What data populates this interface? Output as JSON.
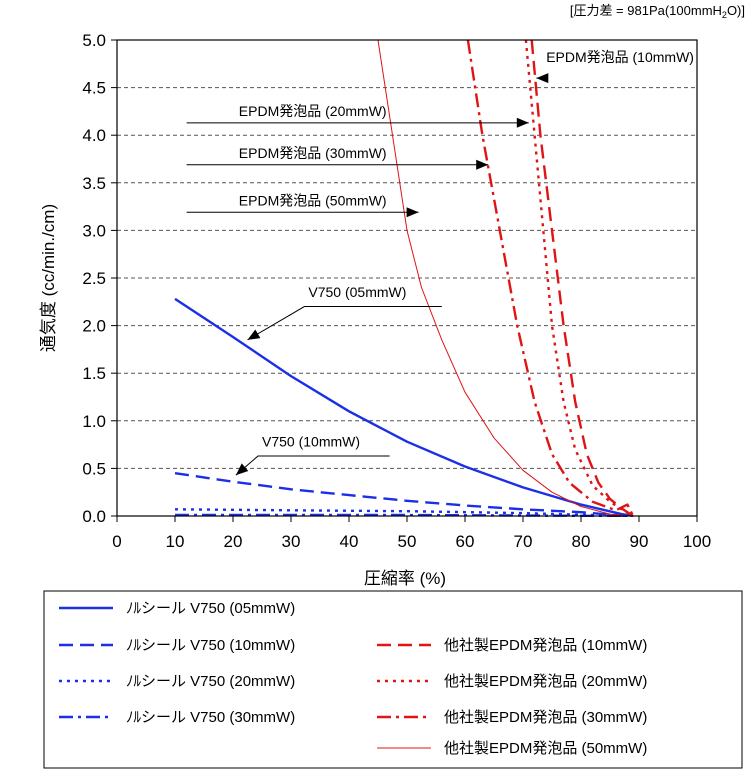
{
  "chart_data": {
    "type": "line",
    "note_prefix": "[圧力差 = 981Pa(100mmH",
    "note_sub": "2",
    "note_suffix": "O)]",
    "xlabel": "圧縮率 (%)",
    "ylabel": "通気度 (cc/min./cm)",
    "xlim": [
      0,
      100
    ],
    "ylim": [
      0,
      5
    ],
    "x_ticks": [
      "0",
      "10",
      "20",
      "30",
      "40",
      "50",
      "60",
      "70",
      "80",
      "90",
      "100"
    ],
    "y_ticks": [
      "0.0",
      "0.5",
      "1.0",
      "1.5",
      "2.0",
      "2.5",
      "3.0",
      "3.5",
      "4.0",
      "4.5",
      "5.0"
    ],
    "grid": "horizontal dashed",
    "legend_position": "bottom",
    "series": [
      {
        "name": "ﾉﾙシール V750 (05mmW)",
        "color": "#1a2fe6",
        "style": "solid",
        "width": 2.4,
        "points": [
          [
            10,
            2.28
          ],
          [
            20,
            1.88
          ],
          [
            30,
            1.47
          ],
          [
            40,
            1.1
          ],
          [
            50,
            0.78
          ],
          [
            60,
            0.52
          ],
          [
            70,
            0.3
          ],
          [
            80,
            0.12
          ],
          [
            87,
            0.02
          ],
          [
            89,
            0.0
          ]
        ]
      },
      {
        "name": "ﾉﾙシール V750 (10mmW)",
        "color": "#1a2fe6",
        "style": "dash",
        "width": 2.4,
        "points": [
          [
            10,
            0.45
          ],
          [
            20,
            0.36
          ],
          [
            30,
            0.28
          ],
          [
            40,
            0.22
          ],
          [
            50,
            0.16
          ],
          [
            60,
            0.11
          ],
          [
            70,
            0.07
          ],
          [
            80,
            0.04
          ],
          [
            88,
            0.0
          ]
        ]
      },
      {
        "name": "ﾉﾙシール V750 (20mmW)",
        "color": "#1a2fe6",
        "style": "dot",
        "width": 2.4,
        "points": [
          [
            10,
            0.07
          ],
          [
            30,
            0.06
          ],
          [
            50,
            0.05
          ],
          [
            70,
            0.03
          ],
          [
            88,
            0.0
          ]
        ]
      },
      {
        "name": "ﾉﾙシール V750 (30mmW)",
        "color": "#1a2fe6",
        "style": "dashdot",
        "width": 2.4,
        "points": [
          [
            10,
            0.01
          ],
          [
            50,
            0.01
          ],
          [
            88,
            0.0
          ]
        ]
      },
      {
        "name": "他社製EPDM発泡品 (10mmW)",
        "color": "#e01414",
        "style": "dash",
        "width": 2.4,
        "points": [
          [
            71.5,
            5.0
          ],
          [
            73,
            4.0
          ],
          [
            75,
            3.0
          ],
          [
            77,
            2.0
          ],
          [
            79,
            1.2
          ],
          [
            81,
            0.65
          ],
          [
            83,
            0.35
          ],
          [
            85,
            0.18
          ],
          [
            87,
            0.08
          ],
          [
            89,
            0.0
          ]
        ]
      },
      {
        "name": "他社製EPDM発泡品 (20mmW)",
        "color": "#e01414",
        "style": "dot",
        "width": 2.4,
        "points": [
          [
            70.5,
            5.0
          ],
          [
            72,
            4.0
          ],
          [
            73.5,
            3.0
          ],
          [
            75,
            2.0
          ],
          [
            77,
            1.2
          ],
          [
            79,
            0.7
          ],
          [
            82,
            0.32
          ],
          [
            85,
            0.15
          ],
          [
            87,
            0.07
          ],
          [
            89,
            0.0
          ]
        ]
      },
      {
        "name": "他社製EPDM発泡品 (30mmW)",
        "color": "#e01414",
        "style": "dashdot",
        "width": 2.4,
        "points": [
          [
            60.5,
            5.0
          ],
          [
            63,
            4.0
          ],
          [
            66,
            3.0
          ],
          [
            69,
            2.0
          ],
          [
            72,
            1.2
          ],
          [
            75,
            0.65
          ],
          [
            78,
            0.35
          ],
          [
            82,
            0.15
          ],
          [
            86,
            0.06
          ],
          [
            88,
            0.12
          ],
          [
            89,
            0.0
          ]
        ]
      },
      {
        "name": "他社製EPDM発泡品 (50mmW)",
        "color": "#e01414",
        "style": "thin",
        "width": 1.0,
        "points": [
          [
            45,
            5.0
          ],
          [
            47.5,
            4.0
          ],
          [
            50,
            3.0
          ],
          [
            52.5,
            2.4
          ],
          [
            56,
            1.85
          ],
          [
            60,
            1.3
          ],
          [
            65,
            0.82
          ],
          [
            70,
            0.48
          ],
          [
            75,
            0.25
          ],
          [
            80,
            0.1
          ],
          [
            85,
            0.02
          ],
          [
            88,
            0.0
          ]
        ]
      }
    ],
    "annotations": [
      {
        "text": "EPDM発泡品 (10mmW)",
        "tx": 74,
        "ty": 4.77,
        "ax": 73,
        "ay": 4.6,
        "tip": [
          72.3,
          4.6
        ]
      },
      {
        "text": "EPDM発泡品 (20mmW)",
        "tx": 21,
        "ty": 4.2,
        "ax": 12,
        "ay": 4.13,
        "tip": [
          71,
          4.13
        ]
      },
      {
        "text": "EPDM発泡品 (30mmW)",
        "tx": 21,
        "ty": 3.76,
        "ax": 12,
        "ay": 3.69,
        "tip": [
          64,
          3.69
        ]
      },
      {
        "text": "EPDM発泡品 (50mmW)",
        "tx": 21,
        "ty": 3.26,
        "ax": 12,
        "ay": 3.19,
        "tip": [
          52,
          3.19
        ]
      },
      {
        "text": "V750 (05mmW)",
        "tx": 33,
        "ty": 2.3,
        "ax": 56,
        "ay": 2.2,
        "tip": [
          22.5,
          1.85
        ]
      },
      {
        "text": "V750 (10mmW)",
        "tx": 25,
        "ty": 0.73,
        "ax": 47,
        "ay": 0.63,
        "tip": [
          20.5,
          0.43
        ]
      }
    ]
  }
}
